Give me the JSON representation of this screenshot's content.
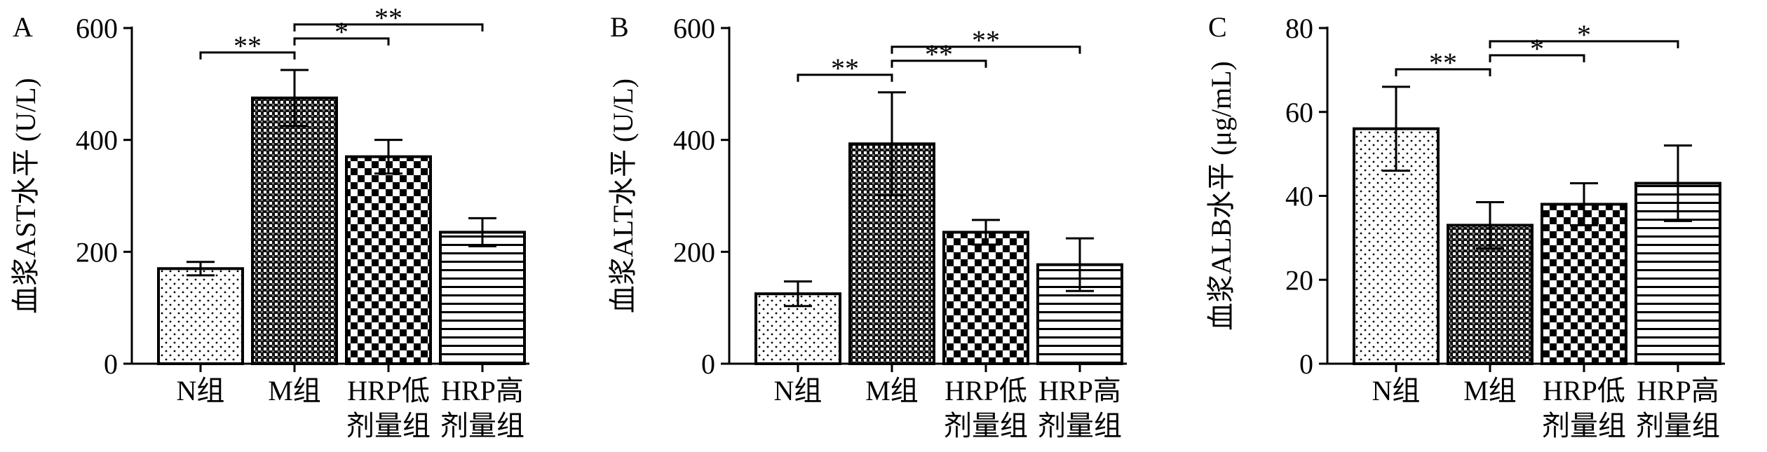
{
  "chart_data": [
    {
      "type": "bar",
      "panel_label": "A",
      "y_label": "血浆AST水平 (U/L)",
      "categories": [
        [
          "N组"
        ],
        [
          "M组"
        ],
        [
          "HRP低",
          "剂量组"
        ],
        [
          "HRP高",
          "剂量组"
        ]
      ],
      "values": [
        170,
        475,
        370,
        235
      ],
      "errors": [
        12,
        50,
        30,
        25
      ],
      "patterns": [
        "dots",
        "checker-small",
        "checker",
        "hlines"
      ],
      "ylim": [
        0,
        600
      ],
      "yticks": [
        0,
        200,
        400,
        600
      ],
      "significance": [
        {
          "from": 0,
          "to": 1,
          "label": "**"
        },
        {
          "from": 1,
          "to": 2,
          "label": "*"
        },
        {
          "from": 1,
          "to": 3,
          "label": "**"
        }
      ]
    },
    {
      "type": "bar",
      "panel_label": "B",
      "y_label": "血浆ALT水平 (U/L)",
      "categories": [
        [
          "N组"
        ],
        [
          "M组"
        ],
        [
          "HRP低",
          "剂量组"
        ],
        [
          "HRP高",
          "剂量组"
        ]
      ],
      "values": [
        125,
        393,
        235,
        177
      ],
      "errors": [
        22,
        92,
        22,
        47
      ],
      "patterns": [
        "dots",
        "checker-small",
        "checker",
        "hlines"
      ],
      "ylim": [
        0,
        600
      ],
      "yticks": [
        0,
        200,
        400,
        600
      ],
      "significance": [
        {
          "from": 0,
          "to": 1,
          "label": "**"
        },
        {
          "from": 1,
          "to": 2,
          "label": "**"
        },
        {
          "from": 1,
          "to": 3,
          "label": "**"
        }
      ]
    },
    {
      "type": "bar",
      "panel_label": "C",
      "y_label": "血浆ALB水平 (μg/mL)",
      "categories": [
        [
          "N组"
        ],
        [
          "M组"
        ],
        [
          "HRP低",
          "剂量组"
        ],
        [
          "HRP高",
          "剂量组"
        ]
      ],
      "values": [
        56,
        33,
        38,
        43
      ],
      "errors": [
        10,
        5.5,
        5,
        9
      ],
      "patterns": [
        "dots",
        "checker-small",
        "checker",
        "hlines"
      ],
      "ylim": [
        0,
        80
      ],
      "yticks": [
        0,
        20,
        40,
        60,
        80
      ],
      "significance": [
        {
          "from": 0,
          "to": 1,
          "label": "**"
        },
        {
          "from": 1,
          "to": 2,
          "label": "*"
        },
        {
          "from": 1,
          "to": 3,
          "label": "*"
        }
      ]
    }
  ]
}
